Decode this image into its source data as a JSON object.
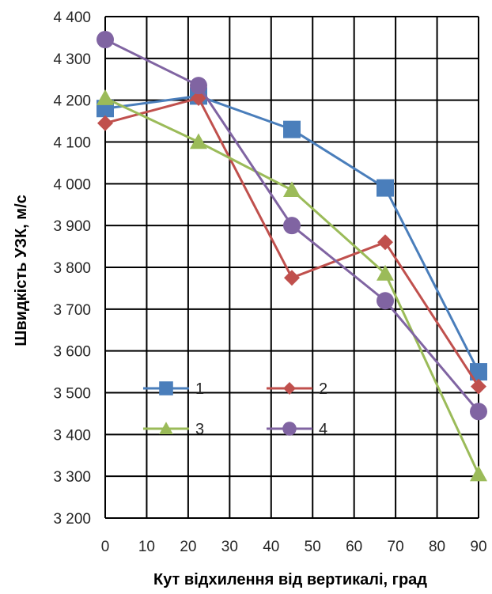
{
  "chart_data": {
    "type": "line",
    "xlabel": "Кут відхилення від вертикалі, град",
    "ylabel": "Швидкість УЗК, м/с",
    "xlim": [
      0,
      90
    ],
    "ylim": [
      3200,
      4400
    ],
    "x_ticks": [
      "0",
      "10",
      "20",
      "30",
      "40",
      "50",
      "60",
      "70",
      "80",
      "90"
    ],
    "y_ticks": [
      "3 200",
      "3 300",
      "3 400",
      "3 500",
      "3 600",
      "3 700",
      "3 800",
      "3 900",
      "4 000",
      "4 100",
      "4 200",
      "4 300",
      "4 400"
    ],
    "grid": true,
    "legend_position": "lower-left inside plot",
    "series": [
      {
        "name": "1",
        "color": "#4a7ebb",
        "marker": "square",
        "points": [
          [
            0,
            4180
          ],
          [
            22.5,
            4210
          ],
          [
            45,
            4130
          ],
          [
            67.5,
            3990
          ],
          [
            90,
            3550
          ]
        ]
      },
      {
        "name": "2",
        "color": "#c0504d",
        "marker": "diamond",
        "points": [
          [
            0,
            4145
          ],
          [
            22.5,
            4205
          ],
          [
            45,
            3775
          ],
          [
            67.5,
            3860
          ],
          [
            90,
            3515
          ]
        ]
      },
      {
        "name": "3",
        "color": "#9bbb59",
        "marker": "triangle",
        "points": [
          [
            0,
            4205
          ],
          [
            22.5,
            4100
          ],
          [
            45,
            3985
          ],
          [
            67.5,
            3785
          ],
          [
            90,
            3305
          ]
        ]
      },
      {
        "name": "4",
        "color": "#8064a2",
        "marker": "circle",
        "points": [
          [
            0,
            4345
          ],
          [
            22.5,
            4235
          ],
          [
            45,
            3900
          ],
          [
            67.5,
            3720
          ],
          [
            90,
            3455
          ]
        ]
      }
    ]
  }
}
